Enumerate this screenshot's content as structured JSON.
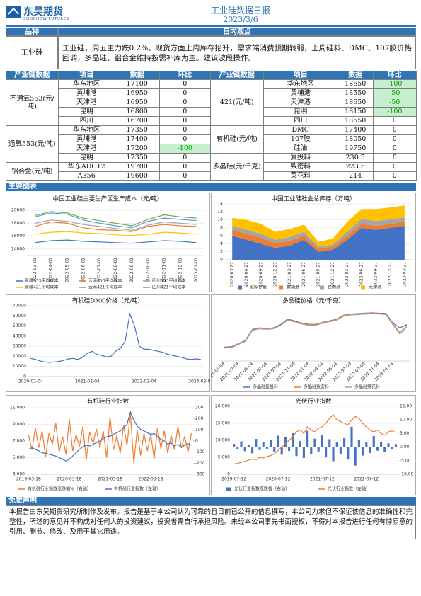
{
  "header": {
    "logo": "东吴期货",
    "logo_en": "SOOCHOW FUTURES",
    "title": "工业硅数据日报",
    "date": "2023/3/6"
  },
  "view": {
    "col1": "品种",
    "col2": "日内观点",
    "product": "工业硅",
    "text": "工业硅，周五主力跌0.2%。现货方面上周库存抬升，需求端消费预期转弱，上周硅料、DMC、107胶价格回调，多晶硅、铝合金维持按需补库为主。建议波段操作。"
  },
  "table": {
    "headers": [
      "产业链数据",
      "项目",
      "数据",
      "环比"
    ],
    "left": [
      {
        "group": "不通氧553(元/吨)",
        "rows": [
          [
            "华东地区",
            17100,
            0
          ],
          [
            "黄埔港",
            16950,
            0
          ],
          [
            "天津港",
            16950,
            0
          ],
          [
            "昆明",
            16800,
            0
          ],
          [
            "四川",
            16700,
            0
          ]
        ]
      },
      {
        "group": "通氧553(元/吨)",
        "rows": [
          [
            "华东地区",
            17350,
            0
          ],
          [
            "黄埔港",
            17400,
            0
          ],
          [
            "天津港",
            17200,
            -100
          ],
          [
            "昆明",
            17350,
            0
          ]
        ]
      },
      {
        "group": "铝合金(元/吨)",
        "rows": [
          [
            "华东ADC12",
            19700,
            0
          ],
          [
            "A356",
            19600,
            0
          ]
        ]
      }
    ],
    "right": [
      {
        "group": "421(元/吨)",
        "rows": [
          [
            "华东地区",
            18650,
            -100
          ],
          [
            "黄埔港",
            18550,
            -50
          ],
          [
            "天津港",
            18650,
            -50
          ],
          [
            "昆明",
            18150,
            -100
          ],
          [
            "四川",
            18550,
            0
          ]
        ]
      },
      {
        "group": "有机硅(元/吨)",
        "rows": [
          [
            "DMC",
            17400,
            0
          ],
          [
            "107胶",
            18050,
            0
          ],
          [
            "硅油",
            19750,
            0
          ]
        ]
      },
      {
        "group": "多晶硅(元/千克)",
        "rows": [
          [
            "复投料",
            230.5,
            0
          ],
          [
            "致密料",
            223.5,
            0
          ],
          [
            "菜花料",
            214,
            0
          ]
        ]
      }
    ]
  },
  "section_charts": "主要图表",
  "charts": [
    {
      "type": "line",
      "title": "中国工业硅主要生产区生产成本（元/吨）",
      "categories": [
        "2022-03-01",
        "2022-04-01",
        "2022-05-01",
        "2022-06-01",
        "2022-07-01",
        "2022-08-01",
        "2022-09-01",
        "2022-10-01",
        "2022-11-01",
        "2022-12-01",
        "2023-01-01"
      ],
      "ylim": [
        13000,
        21000
      ],
      "yticks": [
        14000,
        16000,
        18000,
        20000
      ],
      "grid": true,
      "legend": "bottom",
      "series": [
        {
          "name": "新疆553平均成本",
          "color": "#4472c4",
          "values": [
            15000,
            15300,
            15400,
            15200,
            15100,
            15000,
            14900,
            15100,
            15300,
            15200,
            15000
          ]
        },
        {
          "name": "云南553平均成本",
          "color": "#ed7d31",
          "values": [
            17500,
            18200,
            18000,
            17300,
            17000,
            16900,
            16700,
            17500,
            17800,
            17600,
            17500
          ]
        },
        {
          "name": "四川553平均成本",
          "color": "#a5a5a5",
          "values": [
            18000,
            18500,
            18300,
            17800,
            17500,
            17200,
            16900,
            17700,
            18200,
            18000,
            17800
          ]
        },
        {
          "name": "新疆421平均成本",
          "color": "#ffc000",
          "values": [
            16300,
            16600,
            16700,
            16500,
            16400,
            16200,
            16100,
            16300,
            16600,
            16500,
            16300
          ]
        },
        {
          "name": "云南421平均成本",
          "color": "#5b9bd5",
          "values": [
            19000,
            19600,
            19400,
            18500,
            18000,
            17600,
            17300,
            18300,
            18800,
            18600,
            18400
          ]
        },
        {
          "name": "四川421平均成本",
          "color": "#70ad47",
          "values": [
            19200,
            19800,
            19600,
            18800,
            18400,
            18000,
            17600,
            18600,
            19300,
            19000,
            18800
          ]
        }
      ]
    },
    {
      "type": "area",
      "title": "中国工业硅社会总库存（万吨）",
      "categories": [
        "2020-03-27",
        "2020-06-27",
        "2020-09-27",
        "2020-12-27",
        "2021-03-27",
        "2021-06-27",
        "2021-09-27",
        "2021-12-27",
        "2022-03-27",
        "2022-06-27",
        "2022-09-27",
        "2022-12-27",
        "2023-03-27"
      ],
      "ylim": [
        0,
        14
      ],
      "yticks": [
        0,
        2,
        4,
        6,
        8,
        10,
        12,
        14
      ],
      "grid": true,
      "legend": "bottom",
      "series": [
        {
          "name": "厂家库存量",
          "color": "#4472c4",
          "values": [
            6,
            5,
            4,
            3,
            3.5,
            5,
            2,
            2.5,
            5,
            8,
            7.5,
            8,
            8.5
          ]
        },
        {
          "name": "黄埔港",
          "color": "#ed7d31",
          "values": [
            1.5,
            1.5,
            1.5,
            1.2,
            1.2,
            1,
            0.8,
            0.8,
            1,
            1,
            1,
            1,
            1
          ]
        },
        {
          "name": "昆明港",
          "color": "#a5a5a5",
          "values": [
            1,
            1,
            1,
            0.8,
            1,
            1,
            0.5,
            0.5,
            1,
            1.2,
            1.2,
            1.1,
            1.1
          ]
        },
        {
          "name": "天津港",
          "color": "#ffc000",
          "values": [
            2,
            2.5,
            2.5,
            2,
            2,
            1.8,
            1.2,
            1.5,
            2.5,
            2.5,
            3,
            3,
            3
          ]
        }
      ]
    },
    {
      "type": "line",
      "title": "有机硅DMC价格（元/吨）",
      "categories": [
        "2020-02-04",
        null,
        null,
        null,
        null,
        null,
        null,
        null,
        null,
        null,
        null,
        null,
        "2021-02-04",
        null,
        null,
        null,
        null,
        null,
        null,
        null,
        null,
        null,
        null,
        null,
        "2022-02-04",
        null,
        null,
        null,
        null,
        null,
        null,
        null,
        null,
        null,
        null,
        null,
        "2023-02-04"
      ],
      "ylim": [
        0,
        70000
      ],
      "yticks": [
        0,
        10000,
        20000,
        30000,
        40000,
        50000,
        60000,
        70000
      ],
      "grid": true,
      "color": "#4472c4",
      "values": [
        18000,
        17000,
        15500,
        14500,
        14000,
        14500,
        15000,
        16000,
        17500,
        18000,
        17000,
        19000,
        23000,
        25000,
        22000,
        21000,
        19500,
        20000,
        25000,
        28000,
        35000,
        62000,
        50000,
        30000,
        27000,
        27000,
        26000,
        25000,
        24000,
        22000,
        21000,
        20000,
        19000,
        17500,
        17000,
        17500,
        17000
      ]
    },
    {
      "type": "line",
      "title": "多晶硅价格（元/千克）",
      "categories": [
        "2021-01-04",
        null,
        "2021-03-04",
        null,
        "2021-05-04",
        null,
        "2021-07-04",
        null,
        "2021-09-04",
        null,
        "2021-11-04",
        null,
        "2022-01-04",
        null,
        "2022-03-04",
        null,
        "2022-05-04",
        null,
        "2022-07-04",
        null,
        "2022-09-04",
        null,
        "2022-11-04",
        null,
        "2023-01-04",
        null,
        null
      ],
      "ylim": [
        0,
        350
      ],
      "grid": false,
      "legend": "bottom",
      "series": [
        {
          "name": "多晶硅复投料",
          "color": "#4472c4",
          "values": [
            88,
            90,
            110,
            130,
            200,
            210,
            206,
            210,
            230,
            265,
            255,
            240,
            233,
            232,
            245,
            255,
            265,
            290,
            298,
            300,
            303,
            305,
            303,
            302,
            240,
            210,
            230
          ]
        },
        {
          "name": "多晶硅致密料",
          "color": "#ed7d31",
          "values": [
            85,
            87,
            108,
            128,
            198,
            208,
            204,
            208,
            227,
            262,
            252,
            238,
            230,
            230,
            243,
            253,
            263,
            288,
            296,
            298,
            301,
            303,
            301,
            298,
            235,
            180,
            225
          ]
        },
        {
          "name": "多晶硅菜花料",
          "color": "#a5a5a5",
          "values": [
            82,
            84,
            104,
            124,
            194,
            204,
            200,
            204,
            224,
            258,
            248,
            234,
            226,
            226,
            239,
            249,
            259,
            284,
            292,
            294,
            297,
            300,
            298,
            295,
            230,
            170,
            215
          ]
        }
      ]
    },
    {
      "type": "line",
      "title": "有机硅行业指数",
      "categories": [
        "2019-03-18",
        null,
        null,
        null,
        null,
        null,
        null,
        null,
        null,
        null,
        null,
        null,
        "2020-03-18",
        null,
        null,
        null,
        null,
        null,
        null,
        null,
        null,
        null,
        null,
        null,
        "2021-03-18",
        null,
        null,
        null,
        null,
        null,
        null,
        null,
        null,
        null,
        null,
        null,
        "2022-03-18",
        null,
        null,
        null,
        null,
        null,
        null,
        null,
        null,
        null,
        null,
        null,
        null
      ],
      "ylim": [
        3000,
        11000
      ],
      "yticks": [
        {
          "value": 3000,
          "label": "3,000"
        },
        {
          "value": 5000,
          "label": "5,000"
        },
        {
          "value": 7000,
          "label": "7,000"
        },
        {
          "value": 9000,
          "label": "9,000"
        },
        {
          "value": 11000,
          "label": "11,000"
        }
      ],
      "y2lim": [
        -300,
        300
      ],
      "y2ticks": [
        -300,
        -200,
        -100,
        0,
        100,
        200,
        300
      ],
      "grid": true,
      "legend": "bottom",
      "series": [
        {
          "name": "有机硅行业指数涨跌幅%（右轴）",
          "color": "#ed7d31",
          "axis": "y2",
          "values": [
            50,
            -80,
            120,
            -60,
            90,
            -140,
            70,
            -30,
            160,
            -100,
            40,
            -120,
            200,
            -90,
            60,
            -50,
            130,
            -170,
            80,
            -20,
            110,
            -60,
            90,
            -150,
            220,
            -80,
            50,
            -110,
            140,
            -40,
            250,
            -200,
            100,
            -130,
            70,
            -90,
            60,
            -160,
            120,
            -70,
            90,
            -110,
            50,
            -80,
            130,
            -60,
            40,
            -100,
            70
          ]
        },
        {
          "name": "有机硅行业指数（左轴）",
          "color": "#4472c4",
          "values": [
            6000,
            6200,
            6000,
            5800,
            5600,
            5500,
            5400,
            5300,
            5200,
            5000,
            4800,
            4600,
            4800,
            5200,
            5600,
            6000,
            6300,
            6500,
            6400,
            6600,
            6800,
            7000,
            7300,
            7500,
            7600,
            7800,
            8000,
            8200,
            8600,
            9000,
            10500,
            9500,
            8800,
            8400,
            8200,
            8000,
            7800,
            7900,
            7500,
            7200,
            7000,
            6600,
            6800,
            6400,
            6600,
            6200,
            6500,
            6700,
            6500
          ]
        }
      ]
    },
    {
      "type": "line",
      "title": "光伏行业指数",
      "categories": [
        "2019-07-12",
        null,
        null,
        null,
        null,
        null,
        null,
        null,
        null,
        null,
        null,
        null,
        "2020-07-12",
        null,
        null,
        null,
        null,
        null,
        null,
        null,
        null,
        null,
        null,
        null,
        "2021-07-12",
        null,
        null,
        null,
        null,
        null,
        null,
        null,
        null,
        null,
        null,
        null,
        "2022-07-12",
        null,
        null,
        null,
        null,
        null,
        null,
        null,
        null
      ],
      "ylim": [
        0,
        20000
      ],
      "yticks": [
        0,
        {
          "value": 5000,
          "label": "5,000"
        },
        {
          "value": 10000,
          "label": "10,000"
        },
        {
          "value": 15000,
          "label": "15,000"
        },
        {
          "value": 20000,
          "label": "20,000"
        }
      ],
      "y2lim": [
        -10,
        15
      ],
      "y2ticks": [
        {
          "value": 15,
          "label": "15.00"
        },
        {
          "value": 10,
          "label": "10.00"
        },
        {
          "value": 5,
          "label": "5.00"
        },
        {
          "value": 0,
          "label": "0.00"
        },
        {
          "value": -5,
          "label": "-5.00"
        },
        {
          "value": -10,
          "label": "-10.00"
        }
      ],
      "grid": true,
      "legend": "bottom",
      "series": [
        {
          "name": "光伏行业指数涨跌幅（右轴）",
          "color": "#4472c4",
          "axis": "y2",
          "type": "bar",
          "values": [
            1.2,
            -0.8,
            2.1,
            -1.5,
            0.9,
            -2.3,
            3.0,
            -1.1,
            1.8,
            -0.6,
            2.5,
            -1.9,
            4.2,
            -2.8,
            3.6,
            -1.4,
            5.1,
            -3.3,
            2.2,
            -4.0,
            6.0,
            -2.7,
            3.1,
            -1.6,
            4.4,
            -3.8,
            2.9,
            -5.2,
            1.7,
            -2.4,
            3.3,
            -4.6,
            7.5,
            -6.8,
            2.6,
            -3.1,
            1.9,
            -2.2,
            4.1,
            -1.3,
            2.0,
            -1.7,
            1.4,
            -0.9,
            1.1
          ]
        },
        {
          "name": "光伏行业指数（左轴）",
          "color": "#ed7d31",
          "values": [
            3000,
            3200,
            3500,
            3800,
            4200,
            4500,
            4300,
            5000,
            4800,
            5200,
            5500,
            6000,
            7000,
            8000,
            9000,
            10000,
            11000,
            12500,
            13000,
            12000,
            14000,
            13000,
            12500,
            13500,
            14000,
            15000,
            16500,
            17500,
            16000,
            15500,
            15000,
            14500,
            16000,
            17000,
            16500,
            15000,
            14000,
            13000,
            12500,
            13000,
            12000,
            11500,
            12500,
            12800,
            12300
          ]
        }
      ]
    }
  ],
  "disclaimer": {
    "title": "免责声明",
    "text": "本报告由东吴期货研究所制作及发布。报告是基于本公司认为可靠的且目前已公开的信息撰写，本公司力求但不保证该信息的准确性和完整性，所述的意见并不构成对任何人的投资建议，投资者需自行承担风险。未经本公司事先书面授权，不得对本报告进行任何有悖原意的引用、删节、修改、及用于其它用途。"
  }
}
